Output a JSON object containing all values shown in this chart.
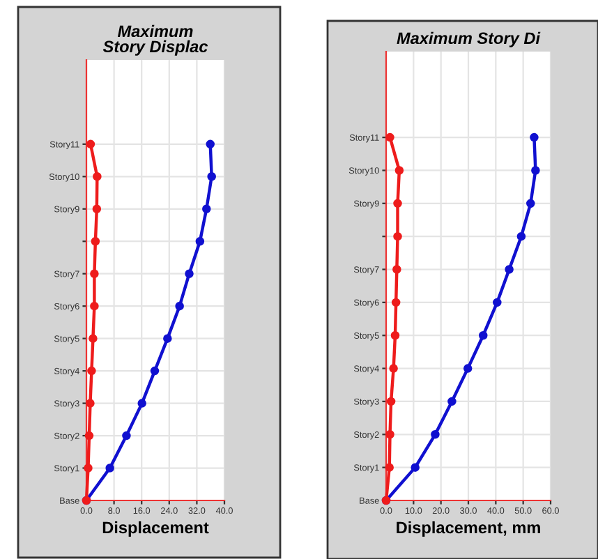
{
  "chart_data": [
    {
      "type": "line",
      "orientation": "horizontal",
      "title": "Maximum\nStory Displac",
      "xlabel": "Displacement",
      "marker": "circle",
      "grid": true,
      "xlim": [
        0,
        40
      ],
      "xticks": [
        {
          "value": 0,
          "label": "0.0"
        },
        {
          "value": 8,
          "label": "8.0"
        },
        {
          "value": 16,
          "label": "16.0"
        },
        {
          "value": 24,
          "label": "24.0"
        },
        {
          "value": 32,
          "label": "32.0"
        },
        {
          "value": 40,
          "label": "40.0"
        }
      ],
      "categories": [
        "Story11",
        "Story10",
        "Story9",
        null,
        "Story7",
        "Story6",
        "Story5",
        "Story4",
        "Story3",
        "Story2",
        "Story1",
        "Base"
      ],
      "series": [
        {
          "color": "#1010d0",
          "values": [
            35.9,
            36.3,
            34.8,
            32.9,
            29.8,
            27,
            23.5,
            19.8,
            16.1,
            11.6,
            6.8,
            0
          ]
        },
        {
          "color": "#ee1c1c",
          "values": [
            1.2,
            3.1,
            3.0,
            2.6,
            2.3,
            2.3,
            1.9,
            1.5,
            1.1,
            0.8,
            0.5,
            0
          ]
        }
      ]
    },
    {
      "type": "line",
      "orientation": "horizontal",
      "title": "Maximum Story Di",
      "xlabel": "Displacement, mm",
      "marker": "circle",
      "grid": true,
      "xlim": [
        0,
        60
      ],
      "xticks": [
        {
          "value": 0,
          "label": "0.0"
        },
        {
          "value": 10,
          "label": "10.0"
        },
        {
          "value": 20,
          "label": "20.0"
        },
        {
          "value": 30,
          "label": "30.0"
        },
        {
          "value": 40,
          "label": "40.0"
        },
        {
          "value": 50,
          "label": "50.0"
        },
        {
          "value": 60,
          "label": "60.0"
        }
      ],
      "categories": [
        "Story11",
        "Story10",
        "Story9",
        null,
        "Story7",
        "Story6",
        "Story5",
        "Story4",
        "Story3",
        "Story2",
        "Story1",
        "Base"
      ],
      "series": [
        {
          "color": "#1010d0",
          "values": [
            54.0,
            54.5,
            52.7,
            49.3,
            44.9,
            40.5,
            35.4,
            29.8,
            24.0,
            17.9,
            10.6,
            0
          ]
        },
        {
          "color": "#ee1c1c",
          "values": [
            1.4,
            4.8,
            4.2,
            4.2,
            3.9,
            3.6,
            3.3,
            2.7,
            1.8,
            1.4,
            1.2,
            0
          ]
        }
      ]
    }
  ]
}
